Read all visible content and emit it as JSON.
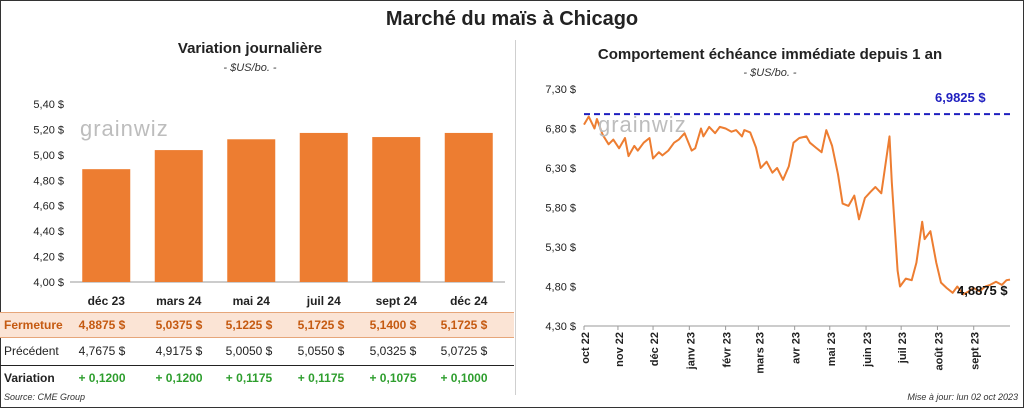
{
  "title": "Marché du maïs à Chicago",
  "left": {
    "subtitle": "Variation journalière",
    "unit": "- $US/bo. -",
    "watermark": "grainwiz"
  },
  "right": {
    "subtitle": "Comportement échéance immédiate depuis 1 an",
    "unit": "- $US/bo. -",
    "watermark": "grainwiz",
    "max_label": "6,9825 $",
    "last_label": "4,8875 $"
  },
  "table": {
    "rows": [
      {
        "label": "Fermeture",
        "values": [
          "4,8875 $",
          "5,0375 $",
          "5,1225 $",
          "5,1725 $",
          "5,1400 $",
          "5,1725 $"
        ]
      },
      {
        "label": "Précédent",
        "values": [
          "4,7675 $",
          "4,9175 $",
          "5,0050 $",
          "5,0550 $",
          "5,0325 $",
          "5,0725 $"
        ]
      },
      {
        "label": "Variation",
        "values": [
          "+ 0,1200",
          "+ 0,1200",
          "+ 0,1175",
          "+ 0,1175",
          "+ 0,1075",
          "+ 0,1000"
        ]
      }
    ]
  },
  "footer": {
    "source": "Source: CME Group",
    "updated": "Mise à jour: lun 02 oct 2023"
  },
  "colors": {
    "bar": "#ed7d31",
    "line": "#ed7d31",
    "max_line": "#1f1fbf",
    "gain": "#2e9e2e"
  },
  "chart_data": [
    {
      "type": "bar",
      "categories": [
        "déc 23",
        "mars 24",
        "mai 24",
        "juil 24",
        "sept 24",
        "déc 24"
      ],
      "values": [
        4.8875,
        5.0375,
        5.1225,
        5.1725,
        5.14,
        5.1725
      ],
      "title": "Variation journalière",
      "ylabel": "$US/bo.",
      "ylim": [
        4.0,
        5.4
      ],
      "yticks": [
        "4,00 $",
        "4,20 $",
        "4,40 $",
        "4,60 $",
        "4,80 $",
        "5,00 $",
        "5,20 $",
        "5,40 $"
      ],
      "ytick_values": [
        4.0,
        4.2,
        4.4,
        4.6,
        4.8,
        5.0,
        5.2,
        5.4
      ],
      "grid": false
    },
    {
      "type": "line",
      "title": "Comportement échéance immédiate depuis 1 an",
      "ylabel": "$US/bo.",
      "ylim": [
        4.3,
        7.3
      ],
      "yticks": [
        "4,30 $",
        "4,80 $",
        "5,30 $",
        "5,80 $",
        "6,30 $",
        "6,80 $",
        "7,30 $"
      ],
      "ytick_values": [
        4.3,
        4.8,
        5.3,
        5.8,
        6.3,
        6.8,
        7.3
      ],
      "xticks": [
        "oct 22",
        "nov 22",
        "déc 22",
        "janv 23",
        "févr 23",
        "mars 23",
        "avr 23",
        "mai 23",
        "juin 23",
        "juil 23",
        "août 23",
        "sept 23"
      ],
      "x_range": [
        "2022-10-03",
        "2023-10-02"
      ],
      "reference_line": {
        "value": 6.9825,
        "label": "6,9825 $"
      },
      "series": [
        {
          "x": [
            "2022-10-03",
            "2022-10-07",
            "2022-10-12",
            "2022-10-14",
            "2022-10-19",
            "2022-10-24",
            "2022-10-28",
            "2022-11-02",
            "2022-11-07",
            "2022-11-10",
            "2022-11-15",
            "2022-11-18",
            "2022-11-23",
            "2022-11-28",
            "2022-12-01",
            "2022-12-06",
            "2022-12-09",
            "2022-12-14",
            "2022-12-19",
            "2022-12-23",
            "2022-12-28",
            "2023-01-03",
            "2023-01-06",
            "2023-01-11",
            "2023-01-13",
            "2023-01-18",
            "2023-01-23",
            "2023-01-27",
            "2023-02-01",
            "2023-02-06",
            "2023-02-10",
            "2023-02-15",
            "2023-02-17",
            "2023-02-22",
            "2023-02-27",
            "2023-03-03",
            "2023-03-08",
            "2023-03-13",
            "2023-03-17",
            "2023-03-22",
            "2023-03-27",
            "2023-03-31",
            "2023-04-05",
            "2023-04-11",
            "2023-04-14",
            "2023-04-19",
            "2023-04-24",
            "2023-04-28",
            "2023-05-03",
            "2023-05-08",
            "2023-05-12",
            "2023-05-17",
            "2023-05-22",
            "2023-05-26",
            "2023-05-31",
            "2023-06-05",
            "2023-06-09",
            "2023-06-14",
            "2023-06-16",
            "2023-06-21",
            "2023-06-23",
            "2023-06-28",
            "2023-06-30",
            "2023-07-05",
            "2023-07-10",
            "2023-07-14",
            "2023-07-19",
            "2023-07-21",
            "2023-07-26",
            "2023-07-31",
            "2023-08-04",
            "2023-08-09",
            "2023-08-14",
            "2023-08-18",
            "2023-08-23",
            "2023-08-28",
            "2023-09-01",
            "2023-09-06",
            "2023-09-11",
            "2023-09-15",
            "2023-09-20",
            "2023-09-25",
            "2023-09-29",
            "2023-10-02"
          ],
          "y": [
            6.85,
            6.95,
            6.8,
            6.92,
            6.72,
            6.6,
            6.66,
            6.55,
            6.68,
            6.45,
            6.58,
            6.52,
            6.62,
            6.68,
            6.42,
            6.5,
            6.46,
            6.52,
            6.62,
            6.66,
            6.74,
            6.52,
            6.55,
            6.8,
            6.7,
            6.82,
            6.74,
            6.82,
            6.8,
            6.76,
            6.78,
            6.7,
            6.78,
            6.75,
            6.56,
            6.3,
            6.38,
            6.24,
            6.3,
            6.15,
            6.32,
            6.62,
            6.68,
            6.7,
            6.62,
            6.56,
            6.5,
            6.78,
            6.58,
            6.22,
            5.85,
            5.82,
            5.95,
            5.65,
            5.92,
            6.0,
            6.06,
            5.98,
            6.18,
            6.7,
            6.12,
            5.0,
            4.8,
            4.9,
            4.88,
            5.1,
            5.62,
            5.4,
            5.5,
            5.1,
            4.85,
            4.78,
            4.72,
            4.8,
            4.7,
            4.74,
            4.78,
            4.74,
            4.8,
            4.82,
            4.86,
            4.82,
            4.88,
            4.8875
          ]
        }
      ],
      "grid": false
    }
  ]
}
